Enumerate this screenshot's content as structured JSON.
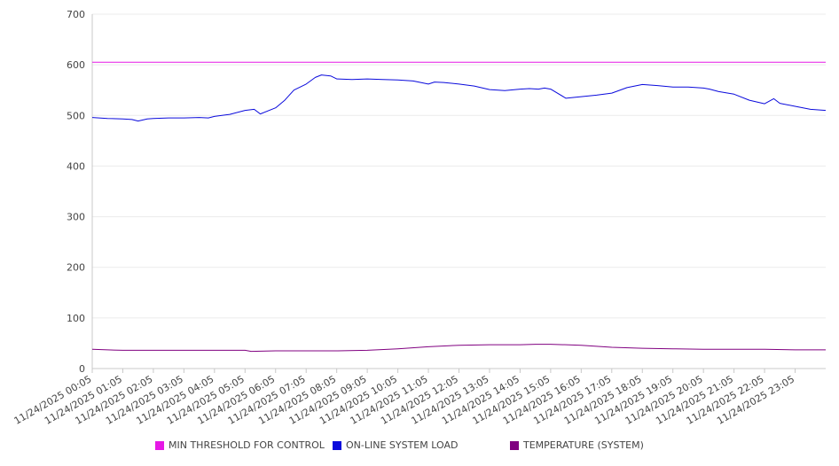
{
  "chart_data": {
    "type": "line",
    "title": "",
    "xlabel": "",
    "ylabel": "",
    "ylim": [
      0,
      700
    ],
    "y_ticks": [
      0,
      100,
      200,
      300,
      400,
      500,
      600,
      700
    ],
    "x_tick_labels": [
      "11/24/2025 00:05",
      "11/24/2025 01:05",
      "11/24/2025 02:05",
      "11/24/2025 03:05",
      "11/24/2025 04:05",
      "11/24/2025 05:05",
      "11/24/2025 06:05",
      "11/24/2025 07:05",
      "11/24/2025 08:05",
      "11/24/2025 09:05",
      "11/24/2025 10:05",
      "11/24/2025 11:05",
      "11/24/2025 12:05",
      "11/24/2025 13:05",
      "11/24/2025 14:05",
      "11/24/2025 15:05",
      "11/24/2025 16:05",
      "11/24/2025 17:05",
      "11/24/2025 18:05",
      "11/24/2025 19:05",
      "11/24/2025 20:05",
      "11/24/2025 21:05",
      "11/24/2025 22:05",
      "11/24/2025 23:05"
    ],
    "x_range_hours": [
      0,
      24
    ],
    "grid": true,
    "legend_position": "bottom",
    "series": [
      {
        "name": "MIN THRESHOLD FOR CONTROL",
        "color": "#e619e6",
        "x": [
          0,
          24
        ],
        "y": [
          605,
          605
        ]
      },
      {
        "name": "ON-LINE SYSTEM LOAD",
        "color": "#0a0adc",
        "x": [
          0,
          0.5,
          1,
          1.3,
          1.5,
          1.8,
          2,
          2.5,
          3,
          3.5,
          3.8,
          4,
          4.5,
          5,
          5.3,
          5.5,
          6,
          6.3,
          6.6,
          7,
          7.3,
          7.5,
          7.8,
          8,
          8.5,
          9,
          9.5,
          10,
          10.5,
          11,
          11.2,
          11.5,
          12,
          12.5,
          13,
          13.5,
          14,
          14.3,
          14.6,
          14.8,
          15,
          15.5,
          16,
          16.5,
          17,
          17.5,
          18,
          18.5,
          19,
          19.5,
          20,
          20.2,
          20.5,
          21,
          21.5,
          22,
          22.3,
          22.5,
          23,
          23.5,
          24
        ],
        "y": [
          496,
          494,
          493,
          492,
          489,
          493,
          494,
          495,
          495,
          496,
          495,
          498,
          502,
          510,
          512,
          503,
          515,
          530,
          550,
          562,
          575,
          580,
          578,
          572,
          571,
          572,
          571,
          570,
          568,
          562,
          566,
          565,
          562,
          558,
          551,
          549,
          552,
          553,
          552,
          554,
          552,
          534,
          537,
          540,
          544,
          555,
          561,
          559,
          556,
          556,
          554,
          552,
          547,
          542,
          530,
          523,
          533,
          524,
          518,
          512,
          510
        ]
      },
      {
        "name": "TEMPERATURE (SYSTEM)",
        "color": "#800080",
        "x": [
          0,
          0.5,
          1,
          2,
          3,
          4,
          5,
          5.2,
          6,
          7,
          8,
          9,
          10,
          11,
          12,
          13,
          14,
          14.5,
          15,
          16,
          17,
          18,
          19,
          20,
          21,
          22,
          23,
          24
        ],
        "y": [
          38,
          37,
          36,
          36,
          36,
          36,
          36,
          34,
          35,
          35,
          35,
          36,
          39,
          43,
          46,
          47,
          47,
          48,
          48,
          46,
          42,
          40,
          39,
          38,
          38,
          38,
          37,
          37
        ]
      }
    ]
  }
}
